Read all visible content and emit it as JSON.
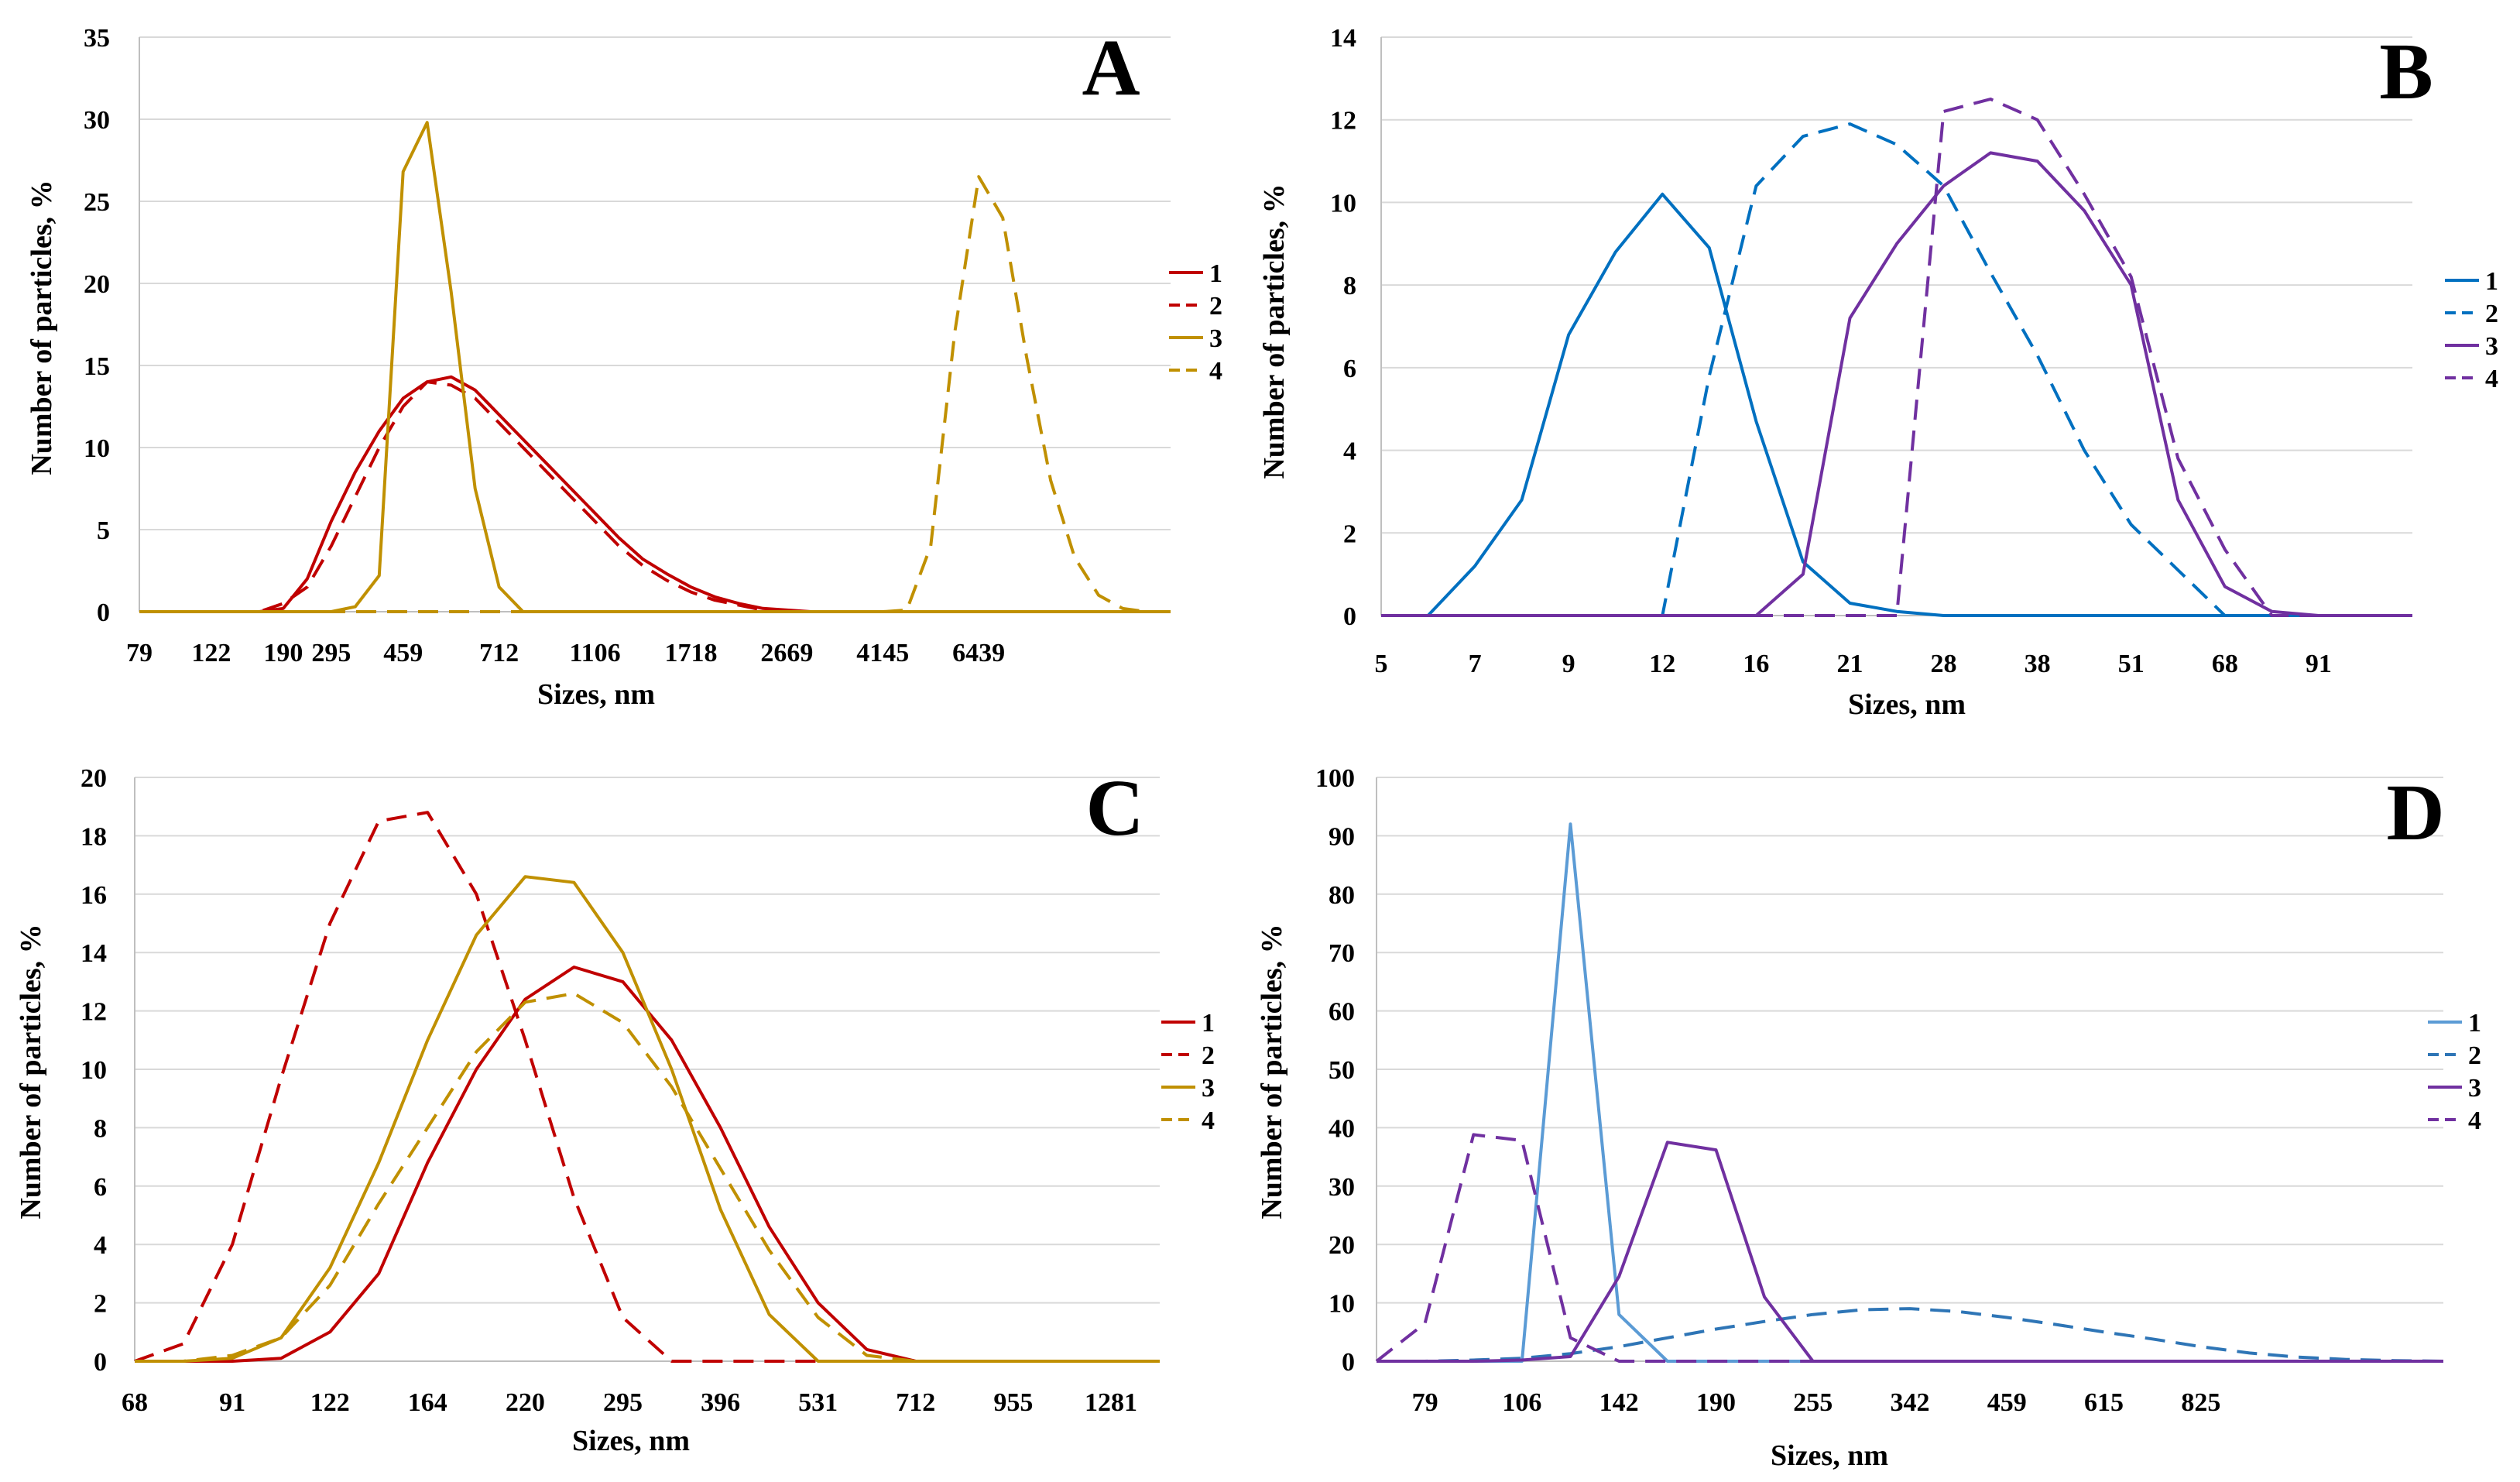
{
  "chart_data": [
    {
      "type": "line",
      "panel": "A",
      "xlabel": "Sizes, nm",
      "ylabel": "Number of particles, %",
      "ylim": [
        0,
        35
      ],
      "yticks": [
        "0",
        "5",
        "10",
        "15",
        "20",
        "25",
        "30",
        "35"
      ],
      "xtick_labels": [
        "79",
        "122",
        "190",
        "295",
        "459",
        "712",
        "1106",
        "1718",
        "2669",
        "4145",
        "6439"
      ],
      "n_points": 44,
      "series": [
        {
          "name": "1",
          "color": "#c00000",
          "dash": "solid",
          "values": [
            0,
            0,
            0,
            0,
            0,
            0,
            0.2,
            2,
            5.5,
            8.5,
            11,
            13,
            14,
            14.3,
            13.5,
            12,
            10.5,
            9,
            7.5,
            6,
            4.5,
            3.2,
            2.3,
            1.5,
            0.9,
            0.5,
            0.2,
            0.1,
            0,
            0,
            0,
            0,
            0,
            0,
            0,
            0,
            0,
            0,
            0,
            0,
            0,
            0,
            0,
            0
          ]
        },
        {
          "name": "2",
          "color": "#c00000",
          "dash": "dashed",
          "values": [
            0,
            0,
            0,
            0,
            0,
            0,
            0.5,
            1.5,
            4,
            7,
            10,
            12.5,
            14,
            13.8,
            13,
            11.5,
            10,
            8.5,
            7,
            5.5,
            4,
            2.8,
            1.9,
            1.2,
            0.7,
            0.4,
            0.1,
            0,
            0,
            0,
            0,
            0,
            0,
            0,
            0,
            0,
            0,
            0,
            0,
            0,
            0,
            0,
            0,
            0
          ]
        },
        {
          "name": "3",
          "color": "#c09000",
          "dash": "solid",
          "values": [
            0,
            0,
            0,
            0,
            0,
            0,
            0,
            0,
            0,
            0.3,
            2.2,
            26.8,
            29.8,
            19.5,
            7.5,
            1.5,
            0,
            0,
            0,
            0,
            0,
            0,
            0,
            0,
            0,
            0,
            0,
            0,
            0,
            0,
            0,
            0,
            0,
            0,
            0,
            0,
            0,
            0,
            0,
            0,
            0,
            0,
            0,
            0
          ]
        },
        {
          "name": "4",
          "color": "#c09000",
          "dash": "dashed",
          "values": [
            0,
            0,
            0,
            0,
            0,
            0,
            0,
            0,
            0,
            0,
            0,
            0,
            0,
            0,
            0,
            0,
            0,
            0,
            0,
            0,
            0,
            0,
            0,
            0,
            0,
            0,
            0,
            0,
            0,
            0,
            0,
            0,
            0.1,
            4,
            17,
            26.5,
            24,
            15.5,
            8,
            3.3,
            1,
            0.2,
            0,
            0
          ]
        }
      ]
    },
    {
      "type": "line",
      "panel": "B",
      "xlabel": "Sizes, nm",
      "ylabel": "Number of particles, %",
      "ylim": [
        0,
        14
      ],
      "yticks": [
        "0",
        "2",
        "4",
        "6",
        "8",
        "10",
        "12",
        "14"
      ],
      "xtick_labels": [
        "5",
        "7",
        "9",
        "12",
        "16",
        "21",
        "28",
        "38",
        "51",
        "68",
        "91"
      ],
      "n_points": 23,
      "series": [
        {
          "name": "1",
          "color": "#0070c0",
          "dash": "solid",
          "values": [
            0,
            0,
            1.2,
            2.8,
            6.8,
            8.8,
            10.2,
            8.9,
            4.7,
            1.3,
            0.3,
            0.1,
            0,
            0,
            0,
            0,
            0,
            0,
            0,
            0,
            0,
            0,
            0
          ]
        },
        {
          "name": "2",
          "color": "#0070c0",
          "dash": "dashed",
          "values": [
            0,
            0,
            0,
            0,
            0,
            0,
            0,
            5.8,
            10.4,
            11.6,
            11.9,
            11.4,
            10.4,
            8.3,
            6.3,
            4,
            2.2,
            1.1,
            0,
            0,
            0,
            0,
            0
          ]
        },
        {
          "name": "3",
          "color": "#7030a0",
          "dash": "solid",
          "values": [
            0,
            0,
            0,
            0,
            0,
            0,
            0,
            0,
            0,
            1,
            7.2,
            9,
            10.4,
            11.2,
            11,
            9.8,
            8,
            2.8,
            0.7,
            0.1,
            0,
            0,
            0
          ]
        },
        {
          "name": "4",
          "color": "#7030a0",
          "dash": "dashed",
          "values": [
            0,
            0,
            0,
            0,
            0,
            0,
            0,
            0,
            0,
            0,
            0,
            0,
            12.2,
            12.5,
            12,
            10.2,
            8.2,
            3.8,
            1.6,
            0,
            0,
            0,
            0
          ]
        }
      ]
    },
    {
      "type": "line",
      "panel": "C",
      "xlabel": "Sizes, nm",
      "ylabel": "Number of particles, %",
      "ylim": [
        0,
        20
      ],
      "yticks": [
        "0",
        "2",
        "4",
        "6",
        "8",
        "10",
        "12",
        "14",
        "16",
        "18",
        "20"
      ],
      "xtick_labels": [
        "68",
        "91",
        "122",
        "164",
        "220",
        "295",
        "396",
        "531",
        "712",
        "955",
        "1281"
      ],
      "n_points": 22,
      "series": [
        {
          "name": "1",
          "color": "#c00000",
          "dash": "solid",
          "values": [
            0,
            0,
            0,
            0.1,
            1,
            3,
            6.8,
            10,
            12.4,
            13.5,
            13,
            11,
            8,
            4.6,
            2,
            0.4,
            0,
            0,
            0,
            0,
            0,
            0
          ]
        },
        {
          "name": "2",
          "color": "#c00000",
          "dash": "dashed",
          "values": [
            0,
            0.6,
            4,
            9.7,
            15,
            18.5,
            18.8,
            16,
            11,
            5.6,
            1.5,
            0,
            0,
            0,
            0,
            0,
            0,
            0,
            0,
            0,
            0,
            0
          ]
        },
        {
          "name": "3",
          "color": "#c09000",
          "dash": "solid",
          "values": [
            0,
            0,
            0.1,
            0.8,
            3.2,
            6.8,
            11,
            14.6,
            16.6,
            16.4,
            14,
            10,
            5.2,
            1.6,
            0,
            0,
            0,
            0,
            0,
            0,
            0,
            0
          ]
        },
        {
          "name": "4",
          "color": "#c09000",
          "dash": "dashed",
          "values": [
            0,
            0,
            0.2,
            0.8,
            2.6,
            5.4,
            8,
            10.6,
            12.3,
            12.6,
            11.6,
            9.4,
            6.6,
            3.8,
            1.5,
            0.2,
            0,
            0,
            0,
            0,
            0,
            0
          ]
        }
      ]
    },
    {
      "type": "line",
      "panel": "D",
      "xlabel": "Sizes, nm",
      "ylabel": "Number of particles, %",
      "ylim": [
        0,
        100
      ],
      "yticks": [
        "0",
        "10",
        "20",
        "30",
        "40",
        "50",
        "60",
        "70",
        "80",
        "90",
        "100"
      ],
      "xtick_labels": [
        "79",
        "106",
        "142",
        "190",
        "255",
        "342",
        "459",
        "615",
        "825"
      ],
      "n_points": 23,
      "series": [
        {
          "name": "1",
          "color": "#5b9bd5",
          "dash": "solid",
          "values": [
            0,
            0,
            0,
            0,
            92,
            8,
            0,
            0,
            0,
            0,
            0,
            0,
            0,
            0,
            0,
            0,
            0,
            0,
            0,
            0,
            0,
            0,
            0
          ]
        },
        {
          "name": "2",
          "color": "#2e75b6",
          "dash": "dashed",
          "values": [
            0,
            0,
            0.2,
            0.5,
            1.3,
            2.5,
            4,
            5.5,
            6.8,
            8,
            8.8,
            9,
            8.5,
            7.5,
            6.3,
            5,
            3.8,
            2.5,
            1.4,
            0.7,
            0.3,
            0.1,
            0
          ]
        },
        {
          "name": "3",
          "color": "#7030a0",
          "dash": "solid",
          "values": [
            0,
            0,
            0,
            0.2,
            0.8,
            14.5,
            37.5,
            36.2,
            11,
            0,
            0,
            0,
            0,
            0,
            0,
            0,
            0,
            0,
            0,
            0,
            0,
            0,
            0
          ]
        },
        {
          "name": "4",
          "color": "#7030a0",
          "dash": "dashed",
          "values": [
            0,
            6.5,
            38.8,
            37.8,
            4,
            0,
            0,
            0,
            0,
            0,
            0,
            0,
            0,
            0,
            0,
            0,
            0,
            0,
            0,
            0,
            0,
            0,
            0
          ]
        }
      ]
    }
  ]
}
